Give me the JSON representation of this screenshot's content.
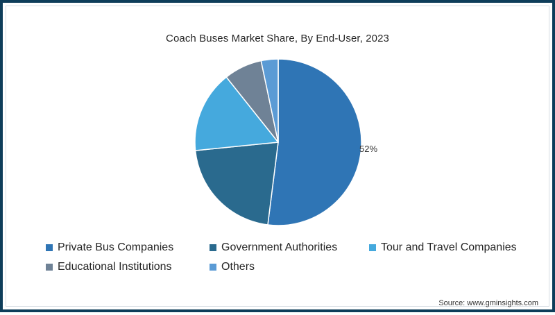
{
  "chart_data": {
    "type": "pie",
    "title": "Coach Buses Market Share, By End-User, 2023",
    "categories": [
      "Private Bus Companies",
      "Government Authorities",
      "Tour and Travel Companies",
      "Educational Institutions",
      "Others"
    ],
    "values": [
      52,
      21.4,
      15.9,
      7.4,
      3.3
    ],
    "colors": [
      "#2f75b5",
      "#2a6a8e",
      "#45a9dd",
      "#6f8296",
      "#5b9bd5"
    ],
    "data_labels": [
      {
        "category": "Private Bus Companies",
        "text": "52%"
      }
    ],
    "legend_position": "bottom",
    "start_angle": "12 o'clock, clockwise"
  },
  "title": "Coach Buses Market Share, By End-User, 2023",
  "data_label": "52%",
  "legend": {
    "items": [
      {
        "label": "Private Bus Companies",
        "color": "#2f75b5"
      },
      {
        "label": "Government Authorities",
        "color": "#2a6a8e"
      },
      {
        "label": "Tour and Travel Companies",
        "color": "#45a9dd"
      },
      {
        "label": "Educational Institutions",
        "color": "#6f8296"
      },
      {
        "label": "Others",
        "color": "#5b9bd5"
      }
    ]
  },
  "source": "Source: www.gminsights.com",
  "frame_color": "#0e3d5a"
}
